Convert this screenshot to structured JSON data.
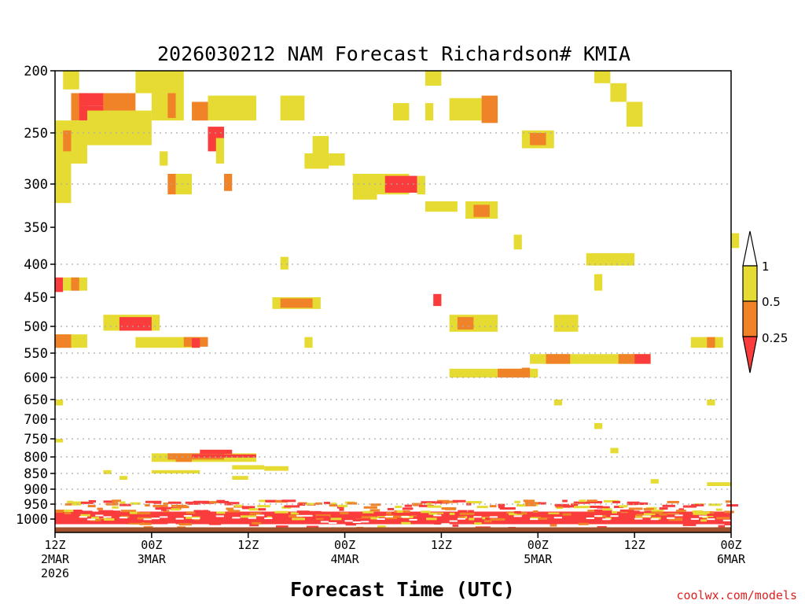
{
  "chart_data": {
    "type": "heatmap",
    "title": "2026030212 NAM Forecast Richardson# KMIA",
    "xlabel": "Forecast Time (UTC)",
    "ylabel": "",
    "credit": "coolwx.com/models",
    "x_range_hours": [
      0,
      84
    ],
    "y_ticks": [
      "200",
      "250",
      "300",
      "350",
      "400",
      "450",
      "500",
      "550",
      "600",
      "650",
      "700",
      "750",
      "800",
      "850",
      "900",
      "950",
      "1000"
    ],
    "y_gridlines": [
      "250",
      "300",
      "400",
      "500",
      "550",
      "600",
      "650",
      "700",
      "750",
      "800",
      "850",
      "900",
      "950"
    ],
    "x_ticks": [
      {
        "hour": 0,
        "line1": "12Z",
        "line2": "2MAR",
        "line3": "2026"
      },
      {
        "hour": 12,
        "line1": "00Z",
        "line2": "3MAR",
        "line3": ""
      },
      {
        "hour": 24,
        "line1": "12Z",
        "line2": "",
        "line3": ""
      },
      {
        "hour": 36,
        "line1": "00Z",
        "line2": "4MAR",
        "line3": ""
      },
      {
        "hour": 48,
        "line1": "12Z",
        "line2": "",
        "line3": ""
      },
      {
        "hour": 60,
        "line1": "00Z",
        "line2": "5MAR",
        "line3": ""
      },
      {
        "hour": 72,
        "line1": "12Z",
        "line2": "",
        "line3": ""
      },
      {
        "hour": 84,
        "line1": "00Z",
        "line2": "6MAR",
        "line3": ""
      }
    ],
    "legend": {
      "levels": [
        "1",
        "0.5",
        "0.25"
      ],
      "classes": [
        {
          "name": "above 1",
          "color": "#ffffff"
        },
        {
          "name": "0.5 to 1",
          "color": "#e5db33"
        },
        {
          "name": "0.25 to 0.5",
          "color": "#f08228"
        },
        {
          "name": "below 0.25",
          "color": "#fa3c3c"
        }
      ]
    },
    "colors": {
      "1": "#e5db33",
      "2": "#f08228",
      "3": "#fa3c3c",
      "ground": "#a0522d"
    },
    "ground_level_hpa": 1013,
    "cells": [
      [
        1,
        3,
        200,
        215,
        1
      ],
      [
        2,
        4,
        218,
        240,
        2
      ],
      [
        3,
        6,
        218,
        228,
        3
      ],
      [
        3,
        6,
        228,
        240,
        3
      ],
      [
        0,
        4,
        240,
        280,
        1
      ],
      [
        0,
        2,
        280,
        322,
        1
      ],
      [
        1,
        2,
        248,
        268,
        2
      ],
      [
        4,
        12,
        232,
        262,
        1
      ],
      [
        6,
        10,
        218,
        232,
        2
      ],
      [
        10,
        16,
        200,
        218,
        1
      ],
      [
        12,
        16,
        218,
        240,
        1
      ],
      [
        14,
        15,
        218,
        238,
        2
      ],
      [
        19,
        21,
        245,
        268,
        3
      ],
      [
        17,
        19,
        225,
        240,
        2
      ],
      [
        19,
        25,
        220,
        240,
        1
      ],
      [
        28,
        31,
        220,
        240,
        1
      ],
      [
        32,
        34,
        253,
        285,
        1
      ],
      [
        34,
        36,
        270,
        282,
        1
      ],
      [
        31,
        34,
        270,
        285,
        1
      ],
      [
        20,
        21,
        255,
        280,
        1
      ],
      [
        13,
        14,
        268,
        282,
        1
      ],
      [
        14,
        15,
        290,
        312,
        2
      ],
      [
        15,
        17,
        290,
        312,
        1
      ],
      [
        21,
        22,
        290,
        308,
        2
      ],
      [
        37,
        40,
        290,
        318,
        1
      ],
      [
        40,
        44,
        290,
        312,
        1
      ],
      [
        41,
        45,
        292,
        310,
        3
      ],
      [
        45,
        46,
        292,
        312,
        1
      ],
      [
        46,
        50,
        320,
        332,
        1
      ],
      [
        51,
        55,
        320,
        340,
        1
      ],
      [
        52,
        54,
        324,
        338,
        2
      ],
      [
        46,
        48,
        200,
        212,
        1
      ],
      [
        49,
        53,
        222,
        240,
        1
      ],
      [
        53,
        55,
        220,
        242,
        2
      ],
      [
        42,
        44,
        226,
        240,
        1
      ],
      [
        46,
        47,
        226,
        240,
        1
      ],
      [
        58,
        62,
        248,
        265,
        1
      ],
      [
        59,
        61,
        250,
        262,
        2
      ],
      [
        57,
        58,
        360,
        380,
        1
      ],
      [
        67,
        69,
        200,
        210,
        1
      ],
      [
        69,
        71,
        210,
        225,
        1
      ],
      [
        71,
        73,
        225,
        245,
        1
      ],
      [
        84,
        85,
        358,
        378,
        1
      ],
      [
        28,
        29,
        390,
        408,
        1
      ],
      [
        27,
        33,
        450,
        470,
        1
      ],
      [
        28,
        32,
        452,
        468,
        2
      ],
      [
        47,
        48,
        445,
        465,
        3
      ],
      [
        0,
        1,
        420,
        442,
        3
      ],
      [
        1,
        4,
        420,
        440,
        1
      ],
      [
        2,
        3,
        420,
        440,
        2
      ],
      [
        6,
        13,
        480,
        508,
        1
      ],
      [
        8,
        12,
        484,
        508,
        3
      ],
      [
        10,
        18,
        520,
        540,
        1
      ],
      [
        16,
        19,
        520,
        538,
        2
      ],
      [
        17,
        18,
        522,
        540,
        3
      ],
      [
        0,
        4,
        515,
        540,
        1
      ],
      [
        0,
        2,
        515,
        540,
        2
      ],
      [
        31,
        32,
        520,
        540,
        1
      ],
      [
        49,
        55,
        480,
        510,
        1
      ],
      [
        50,
        52,
        484,
        506,
        2
      ],
      [
        62,
        65,
        480,
        510,
        1
      ],
      [
        59,
        74,
        552,
        572,
        1
      ],
      [
        61,
        64,
        552,
        572,
        2
      ],
      [
        70,
        72,
        552,
        572,
        2
      ],
      [
        72,
        74,
        552,
        572,
        3
      ],
      [
        49,
        60,
        582,
        600,
        1
      ],
      [
        55,
        59,
        582,
        600,
        2
      ],
      [
        58,
        59,
        580,
        600,
        2
      ],
      [
        79,
        83,
        520,
        540,
        1
      ],
      [
        81,
        82,
        520,
        540,
        2
      ],
      [
        66,
        72,
        385,
        402,
        1
      ],
      [
        67,
        68,
        415,
        440,
        1
      ],
      [
        0,
        1,
        650,
        665,
        1
      ],
      [
        81,
        82,
        650,
        665,
        1
      ],
      [
        62,
        63,
        650,
        665,
        1
      ],
      [
        67,
        68,
        710,
        725,
        1
      ],
      [
        0,
        1,
        750,
        760,
        1
      ],
      [
        69,
        70,
        775,
        790,
        1
      ],
      [
        12,
        25,
        790,
        815,
        1
      ],
      [
        14,
        21,
        790,
        808,
        2
      ],
      [
        17,
        25,
        793,
        802,
        3
      ],
      [
        18,
        22,
        780,
        792,
        3
      ],
      [
        15,
        17,
        800,
        815,
        2
      ],
      [
        22,
        26,
        825,
        838,
        1
      ],
      [
        26,
        29,
        828,
        842,
        1
      ],
      [
        12,
        18,
        840,
        850,
        1
      ],
      [
        8,
        9,
        858,
        870,
        1
      ],
      [
        6,
        7,
        840,
        852,
        1
      ],
      [
        22,
        24,
        858,
        870,
        1
      ],
      [
        74,
        75,
        868,
        882,
        1
      ],
      [
        81,
        84,
        878,
        890,
        1
      ]
    ]
  }
}
